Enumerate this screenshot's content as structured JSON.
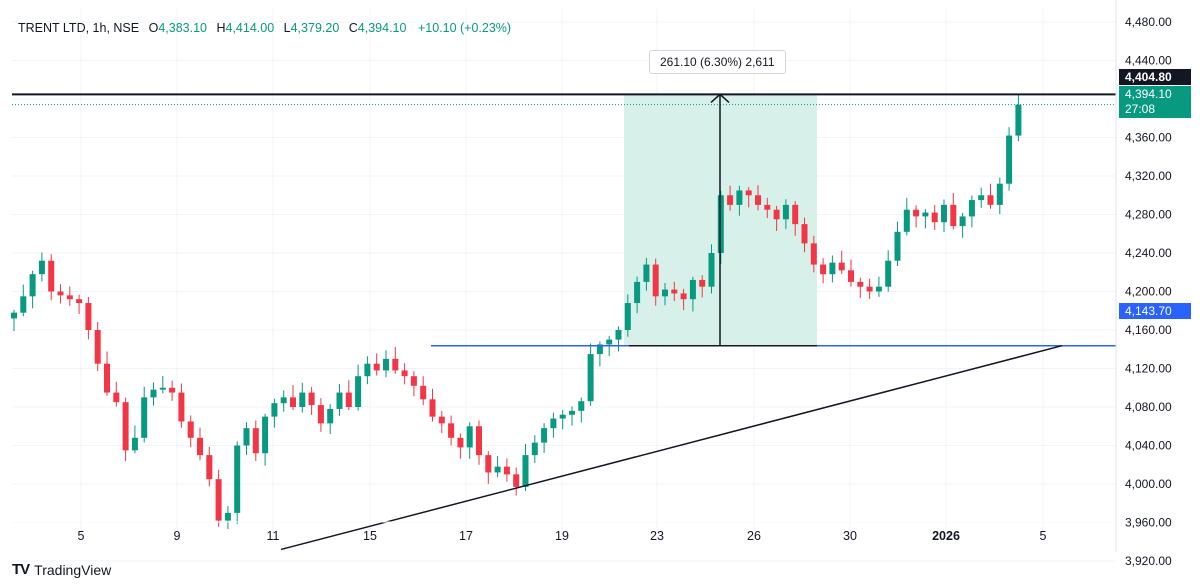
{
  "legend": {
    "symbol": "TRENT LTD, 1h, NSE",
    "open_label": "O",
    "open": "4,383.10",
    "high_label": "H",
    "high": "4,414.00",
    "low_label": "L",
    "low": "4,379.20",
    "close_label": "C",
    "close": "4,394.10",
    "change": "+10.10 (+0.23%)"
  },
  "branding": {
    "logo_text": "TradingView",
    "icon": "tradingview-logo-icon"
  },
  "measure": {
    "label": "261.10 (6.30%) 2,611",
    "from": 4143.7,
    "to": 4404.8
  },
  "price_tags": {
    "resistance": "4,404.80",
    "last_price": "4,394.10",
    "countdown": "27:08",
    "support": "4,143.70"
  },
  "colors": {
    "up": "#089981",
    "down": "#f23645",
    "support_line": "#2962ff",
    "resistance_line": "#131722",
    "measure_fill": "#d7f0ea"
  },
  "chart_data": {
    "type": "candlestick",
    "title": "TRENT LTD, 1h, NSE",
    "yaxis_ticks": [
      "3,920.00",
      "3,960.00",
      "4,000.00",
      "4,040.00",
      "4,080.00",
      "4,120.00",
      "4,160.00",
      "4,200.00",
      "4,240.00",
      "4,280.00",
      "4,320.00",
      "4,360.00",
      "4,400.00",
      "4,440.00",
      "4,480.00"
    ],
    "ylim": [
      3900,
      4495
    ],
    "xaxis_ticks": [
      "5",
      "9",
      "11",
      "15",
      "17",
      "19",
      "23",
      "26",
      "30",
      "2026",
      "5"
    ],
    "horizontal_levels": [
      {
        "name": "resistance",
        "value": 4404.8
      },
      {
        "name": "last",
        "value": 4394.1
      },
      {
        "name": "support",
        "value": 4143.7
      }
    ],
    "trendline": {
      "from": 3932,
      "to": 4143.7
    },
    "path": [
      4178,
      4195,
      4218,
      4232,
      4200,
      4196,
      4192,
      4188,
      4160,
      4125,
      4095,
      4085,
      4035,
      4048,
      4090,
      4098,
      4100,
      4095,
      4065,
      4048,
      4030,
      4005,
      3962,
      3970,
      4040,
      4058,
      4032,
      4070,
      4084,
      4090,
      4080,
      4095,
      4082,
      4063,
      4078,
      4095,
      4080,
      4112,
      4125,
      4118,
      4130,
      4118,
      4112,
      4102,
      4088,
      4070,
      4063,
      4048,
      4038,
      4060,
      4030,
      4012,
      4018,
      4010,
      3997,
      4030,
      4043,
      4058,
      4068,
      4072,
      4076,
      4086,
      4135,
      4145,
      4150,
      4160,
      4188,
      4210,
      4228,
      4195,
      4202,
      4198,
      4192,
      4212,
      4205,
      4240,
      4300,
      4290,
      4305,
      4300,
      4290,
      4285,
      4275,
      4290,
      4270,
      4250,
      4228,
      4218,
      4230,
      4222,
      4210,
      4205,
      4200,
      4205,
      4232,
      4262,
      4285,
      4278,
      4282,
      4272,
      4290,
      4268,
      4278,
      4295,
      4300,
      4290,
      4312,
      4362,
      4394.1
    ]
  }
}
